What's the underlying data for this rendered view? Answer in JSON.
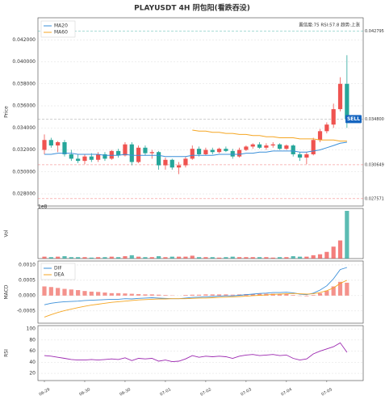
{
  "chart_data": [
    {
      "type": "candlestick",
      "title": "PLAYUSDT  4H  阴包阳(看跌吞没)",
      "y_label": "Price",
      "info": "置信度:75  RSI:57.8  趋势:上涨",
      "signal": "SELL",
      "up_color": "#ef5350",
      "down_color": "#26a69a",
      "grid": true,
      "ylim": [
        0.0269,
        0.044
      ],
      "yticks": [
        {
          "value": 0.028,
          "label": "0.028000"
        },
        {
          "value": 0.03,
          "label": "0.030000"
        },
        {
          "value": 0.032,
          "label": "0.032000"
        },
        {
          "value": 0.034,
          "label": "0.034000"
        },
        {
          "value": 0.036,
          "label": "0.036000"
        },
        {
          "value": 0.038,
          "label": "0.038000"
        },
        {
          "value": 0.04,
          "label": "0.040000"
        },
        {
          "value": 0.042,
          "label": "0.042000"
        }
      ],
      "levels": [
        {
          "value": 0.042795,
          "label": "0.042795",
          "color": "#26a69a"
        },
        {
          "value": 0.0348,
          "label": "0.034800",
          "color": "#888888"
        },
        {
          "value": 0.030649,
          "label": "0.030649",
          "color": "#ef5350"
        },
        {
          "value": 0.027571,
          "label": "0.027571",
          "color": "#ef5350"
        }
      ],
      "open": [
        0.032,
        0.0329,
        0.0324,
        0.0327,
        0.0316,
        0.0312,
        0.031,
        0.0314,
        0.0311,
        0.0316,
        0.0312,
        0.0319,
        0.0315,
        0.0325,
        0.0309,
        0.0322,
        0.0317,
        0.0318,
        0.0306,
        0.0311,
        0.0304,
        0.0306,
        0.0312,
        0.0321,
        0.0316,
        0.032,
        0.0318,
        0.0321,
        0.0319,
        0.0314,
        0.032,
        0.0323,
        0.0325,
        0.0322,
        0.0324,
        0.0325,
        0.0321,
        0.0324,
        0.0316,
        0.0313,
        0.0316,
        0.0329,
        0.0337,
        0.0343,
        0.0357,
        0.038
      ],
      "high": [
        0.0334,
        0.0331,
        0.0328,
        0.0329,
        0.032,
        0.0316,
        0.0316,
        0.0317,
        0.0318,
        0.0318,
        0.032,
        0.0321,
        0.0327,
        0.0327,
        0.0324,
        0.0324,
        0.032,
        0.0319,
        0.0313,
        0.0312,
        0.0309,
        0.0314,
        0.0324,
        0.0323,
        0.0322,
        0.0322,
        0.0322,
        0.0323,
        0.0321,
        0.0322,
        0.0324,
        0.0326,
        0.0327,
        0.0326,
        0.0327,
        0.0326,
        0.0325,
        0.0325,
        0.0318,
        0.0318,
        0.0331,
        0.0339,
        0.0345,
        0.0362,
        0.0386,
        0.0406
      ],
      "low": [
        0.0316,
        0.0322,
        0.0318,
        0.0314,
        0.031,
        0.0308,
        0.0307,
        0.0309,
        0.0309,
        0.031,
        0.0311,
        0.0313,
        0.0314,
        0.0306,
        0.0308,
        0.0315,
        0.0312,
        0.0302,
        0.0302,
        0.0302,
        0.0298,
        0.0304,
        0.0311,
        0.0314,
        0.0315,
        0.0316,
        0.0317,
        0.0318,
        0.0312,
        0.0313,
        0.0319,
        0.0321,
        0.0321,
        0.032,
        0.0322,
        0.032,
        0.032,
        0.0314,
        0.031,
        0.0307,
        0.0315,
        0.0327,
        0.0335,
        0.034,
        0.0355,
        0.034
      ],
      "close": [
        0.0329,
        0.0324,
        0.0327,
        0.0316,
        0.0312,
        0.031,
        0.0314,
        0.0311,
        0.0316,
        0.0312,
        0.0319,
        0.0315,
        0.0325,
        0.0309,
        0.0322,
        0.0317,
        0.0318,
        0.0306,
        0.0311,
        0.0304,
        0.0306,
        0.0312,
        0.0321,
        0.0316,
        0.032,
        0.0318,
        0.0321,
        0.0319,
        0.0314,
        0.032,
        0.0323,
        0.0325,
        0.0322,
        0.0324,
        0.0325,
        0.0321,
        0.0324,
        0.0316,
        0.0313,
        0.0316,
        0.0329,
        0.0337,
        0.0343,
        0.0357,
        0.038,
        0.0348
      ],
      "series": [
        {
          "name": "MA20",
          "color": "#3a8fd9",
          "values": [
            0.0316,
            0.0316,
            0.0317,
            0.0317,
            0.0317,
            0.0316,
            0.0316,
            0.0316,
            0.0316,
            0.0315,
            0.0315,
            0.0315,
            0.0316,
            0.0315,
            0.0315,
            0.0315,
            0.0315,
            0.0315,
            0.0314,
            0.0314,
            0.0314,
            0.0314,
            0.0315,
            0.0315,
            0.0315,
            0.0315,
            0.0316,
            0.0316,
            0.0316,
            0.0316,
            0.0317,
            0.0317,
            0.0318,
            0.0318,
            0.0319,
            0.0319,
            0.0319,
            0.0319,
            0.0318,
            0.0318,
            0.0319,
            0.032,
            0.0322,
            0.0324,
            0.0326,
            0.0327
          ]
        },
        {
          "name": "MA60",
          "color": "#f5a623",
          "values": [
            null,
            null,
            null,
            null,
            null,
            null,
            null,
            null,
            null,
            null,
            null,
            null,
            null,
            null,
            null,
            null,
            null,
            null,
            null,
            null,
            null,
            null,
            0.0338,
            0.0337,
            0.0337,
            0.0336,
            0.0336,
            0.0335,
            0.0335,
            0.0334,
            0.0334,
            0.0333,
            0.0333,
            0.0332,
            0.0332,
            0.0331,
            0.0331,
            0.0331,
            0.033,
            0.033,
            0.033,
            0.0329,
            0.0329,
            0.0329,
            0.0328,
            0.0328
          ]
        }
      ]
    },
    {
      "type": "bar",
      "y_label": "Vol",
      "scale_label": "1e8",
      "ylim": [
        0,
        1.05
      ],
      "values": [
        0.04,
        0.03,
        0.04,
        0.05,
        0.03,
        0.03,
        0.03,
        0.02,
        0.03,
        0.03,
        0.04,
        0.03,
        0.05,
        0.07,
        0.04,
        0.03,
        0.03,
        0.05,
        0.03,
        0.04,
        0.04,
        0.04,
        0.06,
        0.03,
        0.03,
        0.03,
        0.02,
        0.03,
        0.04,
        0.03,
        0.03,
        0.03,
        0.03,
        0.03,
        0.02,
        0.03,
        0.03,
        0.05,
        0.04,
        0.04,
        0.07,
        0.09,
        0.14,
        0.25,
        0.38,
        1.0
      ]
    },
    {
      "type": "macd",
      "y_label": "MACD",
      "hist_color": "#f4928c",
      "ylim": [
        -0.0009,
        0.00113
      ],
      "yticks": [
        {
          "value": -0.0005,
          "label": "-0.0005"
        },
        {
          "value": 0,
          "label": "0.0000"
        },
        {
          "value": 0.0005,
          "label": "0.0005"
        },
        {
          "value": 0.001,
          "label": "0.0010"
        }
      ],
      "histogram": [
        0.0003,
        0.00028,
        0.00025,
        0.00022,
        0.0002,
        0.00018,
        0.00015,
        0.00013,
        0.00012,
        0.0001,
        8e-05,
        8e-05,
        7e-05,
        6e-05,
        5e-05,
        4e-05,
        4e-05,
        3e-05,
        2e-05,
        1e-05,
        0.0,
        2e-05,
        3e-05,
        3e-05,
        4e-05,
        4e-05,
        4e-05,
        4e-05,
        3e-05,
        4e-05,
        5e-05,
        5e-05,
        6e-05,
        6e-05,
        6e-05,
        5e-05,
        5e-05,
        2e-05,
        -1e-05,
        -2e-05,
        2e-05,
        8e-05,
        0.00016,
        0.0003,
        0.00045,
        0.00042
      ],
      "series": [
        {
          "name": "DIF",
          "color": "#3a8fd9",
          "values": [
            -0.0003,
            -0.00025,
            -0.00022,
            -0.0002,
            -0.00019,
            -0.00018,
            -0.00016,
            -0.00015,
            -0.00014,
            -0.00013,
            -0.00012,
            -0.00012,
            -0.0001,
            -0.00011,
            -9e-05,
            -8e-05,
            -7e-05,
            -8e-05,
            -9e-05,
            -0.0001,
            -0.0001,
            -8e-05,
            -6e-05,
            -5e-05,
            -4e-05,
            -3e-05,
            -2e-05,
            -1e-05,
            -1e-05,
            1e-05,
            3e-05,
            5e-05,
            7e-05,
            8e-05,
            0.0001,
            0.0001,
            0.00011,
            9e-05,
            5e-05,
            3e-05,
            8e-05,
            0.00018,
            0.00032,
            0.00055,
            0.00085,
            0.00092
          ]
        },
        {
          "name": "DEA",
          "color": "#f5a623",
          "values": [
            -0.0007,
            -0.00062,
            -0.00055,
            -0.00049,
            -0.00044,
            -0.00039,
            -0.00035,
            -0.00031,
            -0.00028,
            -0.00025,
            -0.00022,
            -0.0002,
            -0.00018,
            -0.00016,
            -0.00014,
            -0.00013,
            -0.00012,
            -0.00011,
            -0.00011,
            -0.0001,
            -0.0001,
            -0.0001,
            -9e-05,
            -8e-05,
            -8e-05,
            -7e-05,
            -6e-05,
            -5e-05,
            -4e-05,
            -3e-05,
            -2e-05,
            0.0,
            1e-05,
            2e-05,
            4e-05,
            5e-05,
            6e-05,
            7e-05,
            6e-05,
            5e-05,
            6e-05,
            0.0001,
            0.00016,
            0.00025,
            0.0004,
            0.0005
          ]
        }
      ]
    },
    {
      "type": "line",
      "y_label": "RSI",
      "color": "#9c27b0",
      "ylim": [
        7,
        106
      ],
      "yticks": [
        20,
        40,
        60,
        80,
        100
      ],
      "categories": [
        "06-29",
        null,
        null,
        null,
        null,
        null,
        "06-30",
        null,
        null,
        null,
        null,
        null,
        "06-30",
        null,
        null,
        null,
        null,
        null,
        "07-01",
        null,
        null,
        null,
        null,
        null,
        "07-02",
        null,
        null,
        null,
        null,
        null,
        "07-03",
        null,
        null,
        null,
        null,
        null,
        "07-04",
        null,
        null,
        null,
        null,
        null,
        "07-05",
        null,
        null,
        null
      ],
      "values": [
        52,
        51,
        49,
        47,
        45,
        44,
        44,
        45,
        44,
        45,
        46,
        45,
        48,
        43,
        47,
        46,
        47,
        42,
        44,
        41,
        42,
        46,
        52,
        49,
        51,
        50,
        51,
        50,
        47,
        51,
        53,
        54,
        52,
        53,
        54,
        52,
        53,
        47,
        44,
        46,
        55,
        60,
        64,
        68,
        75,
        58
      ]
    }
  ]
}
